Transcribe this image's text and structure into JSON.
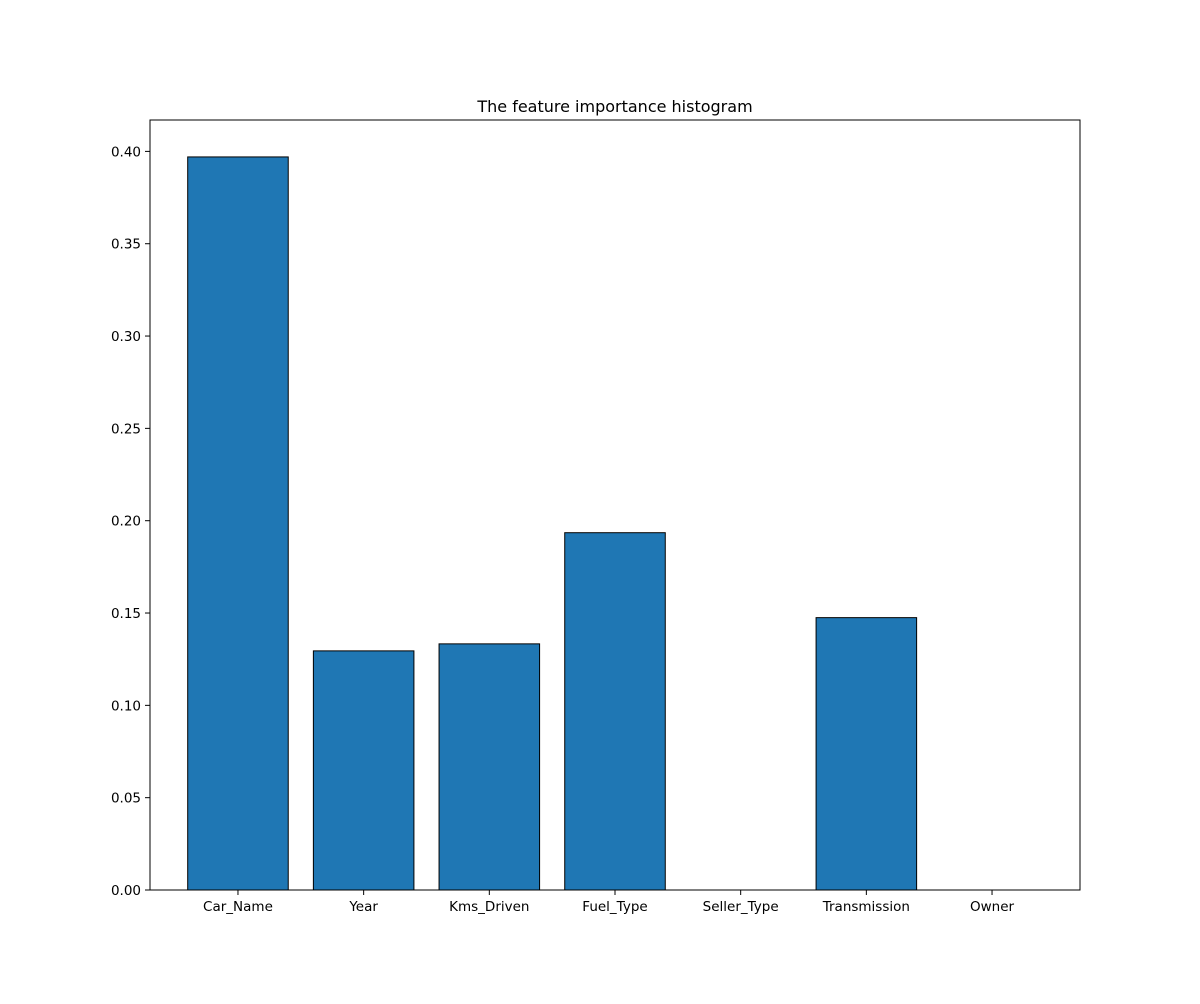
{
  "chart_data": {
    "type": "bar",
    "title": "The feature importance histogram",
    "xlabel": "",
    "ylabel": "",
    "categories": [
      "Car_Name",
      "Year",
      "Kms_Driven",
      "Fuel_Type",
      "Seller_Type",
      "Transmission",
      "Owner"
    ],
    "values": [
      0.397,
      0.1295,
      0.1333,
      0.1935,
      0.0,
      0.1475,
      0.0
    ],
    "ylim": [
      0,
      0.417
    ],
    "yticks": [
      0.0,
      0.05,
      0.1,
      0.15,
      0.2,
      0.25,
      0.3,
      0.35,
      0.4
    ],
    "ytick_labels": [
      "0.00",
      "0.05",
      "0.10",
      "0.15",
      "0.20",
      "0.25",
      "0.30",
      "0.35",
      "0.40"
    ],
    "grid": false,
    "legend": "none",
    "colors": {
      "bar_fill": "#1f77b4",
      "bar_edge": "#000000",
      "axis": "#000000"
    }
  }
}
